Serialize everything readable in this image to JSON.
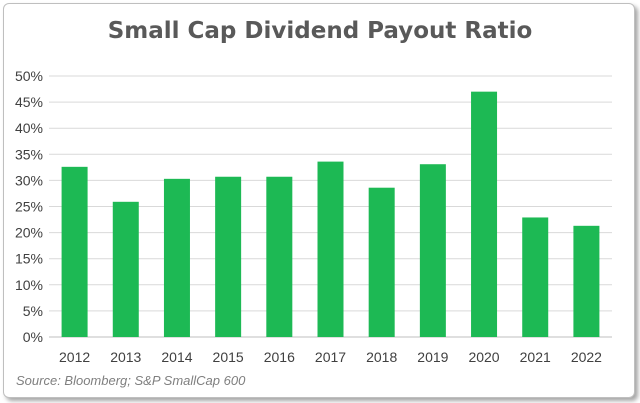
{
  "chart_data": {
    "type": "bar",
    "title": "Small Cap Dividend Payout Ratio",
    "source": "Source: Bloomberg; S&P SmallCap 600",
    "categories": [
      "2012",
      "2013",
      "2014",
      "2015",
      "2016",
      "2017",
      "2018",
      "2019",
      "2020",
      "2021",
      "2022"
    ],
    "values": [
      32.6,
      25.9,
      30.3,
      30.7,
      30.7,
      33.6,
      28.6,
      33.1,
      47.0,
      22.9,
      21.3
    ],
    "ylim": [
      0,
      50
    ],
    "yticks": [
      "0%",
      "5%",
      "10%",
      "15%",
      "20%",
      "25%",
      "30%",
      "35%",
      "40%",
      "45%",
      "50%"
    ],
    "grid": true,
    "bar_color": "#1db954",
    "grid_color": "#d9d9d9"
  }
}
